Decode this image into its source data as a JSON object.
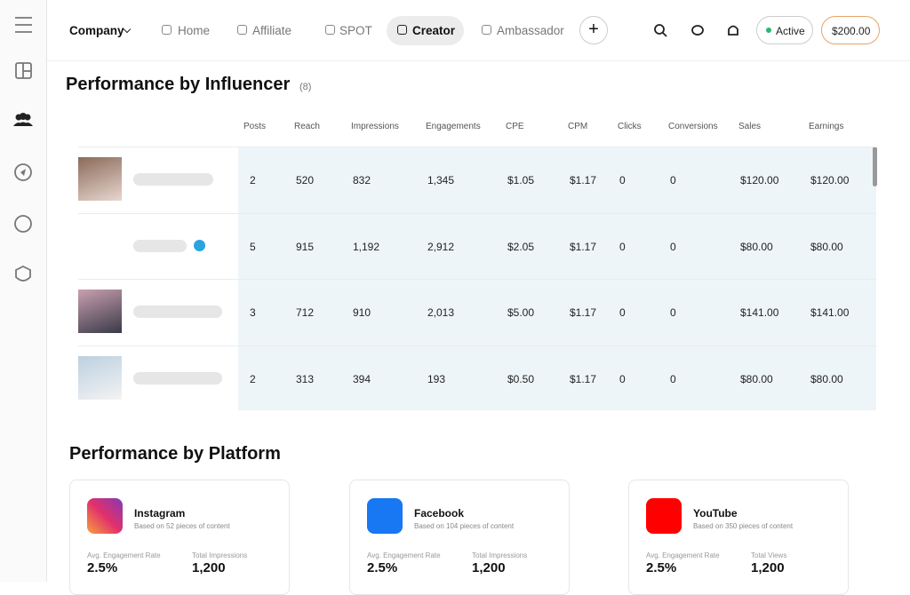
{
  "nav": {
    "menu": [
      "Company",
      "Home",
      "Affiliate",
      "SPOT",
      "Creator",
      "Ambassador"
    ],
    "status": "Active",
    "balance": "$200.00"
  },
  "influencers": {
    "title": "Performance by Influencer",
    "count": "(8)",
    "columns": [
      "Posts",
      "Reach",
      "Impressions",
      "Engagements",
      "CPE",
      "CPM",
      "Clicks",
      "Conversions",
      "Sales",
      "Earnings"
    ],
    "rows": [
      [
        "2",
        "520",
        "832",
        "1,345",
        "$1.05",
        "$1.17",
        "0",
        "0",
        "$120.00",
        "$120.00"
      ],
      [
        "5",
        "915",
        "1,192",
        "2,912",
        "$2.05",
        "$1.17",
        "0",
        "0",
        "$80.00",
        "$80.00"
      ],
      [
        "3",
        "712",
        "910",
        "2,013",
        "$5.00",
        "$1.17",
        "0",
        "0",
        "$141.00",
        "$141.00"
      ],
      [
        "2",
        "313",
        "394",
        "193",
        "$0.50",
        "$1.17",
        "0",
        "0",
        "$80.00",
        "$80.00"
      ]
    ]
  },
  "platforms": {
    "title": "Performance by Platform",
    "cards": [
      {
        "name": "Instagram",
        "note": "Based on 52 pieces of content",
        "metrics": [
          {
            "label": "Avg. Engagement Rate",
            "value": "2.5%"
          },
          {
            "label": "Total Impressions",
            "value": "1,200"
          }
        ]
      },
      {
        "name": "Facebook",
        "note": "Based on 104 pieces of content",
        "metrics": [
          {
            "label": "Avg. Engagement Rate",
            "value": "2.5%"
          },
          {
            "label": "Total Impressions",
            "value": "1,200"
          }
        ]
      },
      {
        "name": "YouTube",
        "note": "Based on 350 pieces of content",
        "metrics": [
          {
            "label": "Avg. Engagement Rate",
            "value": "2.5%"
          },
          {
            "label": "Total Views",
            "value": "1,200"
          }
        ]
      }
    ]
  }
}
